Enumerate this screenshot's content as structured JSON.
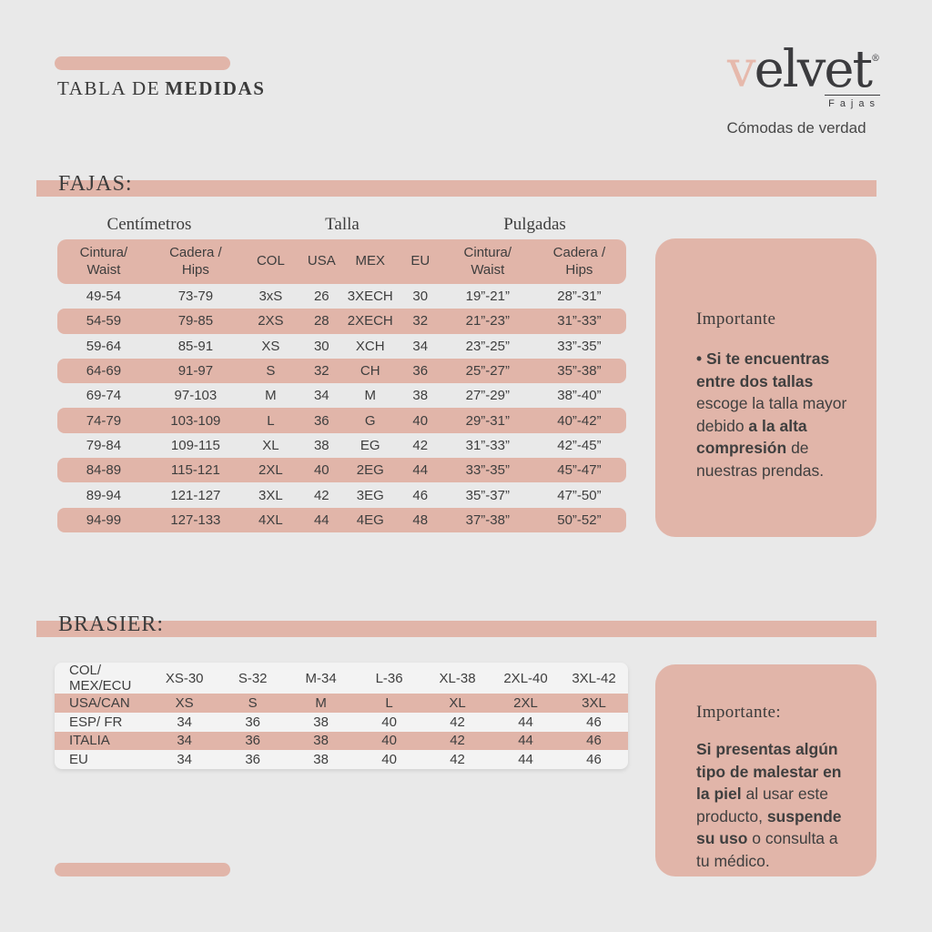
{
  "page": {
    "title_regular": "TABLA DE",
    "title_bold": "MEDIDAS"
  },
  "logo": {
    "wordmark_first": "v",
    "wordmark_rest": "elvet",
    "registered_mark": "®",
    "subtitle": "Fajas",
    "tagline": "Cómodas de verdad"
  },
  "fajas": {
    "section_label": "FAJAS:",
    "group_headers": {
      "cm": "Centímetros",
      "talla": "Talla",
      "pulgadas": "Pulgadas"
    },
    "columns": [
      "Cintura/\nWaist",
      "Cadera /\nHips",
      "COL",
      "USA",
      "MEX",
      "EU",
      "Cintura/\nWaist",
      "Cadera /\nHips"
    ],
    "rows": [
      [
        "49-54",
        "73-79",
        "3xS",
        "26",
        "3XECH",
        "30",
        "19”-21”",
        "28”-31”"
      ],
      [
        "54-59",
        "79-85",
        "2XS",
        "28",
        "2XECH",
        "32",
        "21”-23”",
        "31”-33”"
      ],
      [
        "59-64",
        "85-91",
        "XS",
        "30",
        "XCH",
        "34",
        "23”-25”",
        "33”-35”"
      ],
      [
        "64-69",
        "91-97",
        "S",
        "32",
        "CH",
        "36",
        "25”-27”",
        "35”-38”"
      ],
      [
        "69-74",
        "97-103",
        "M",
        "34",
        "M",
        "38",
        "27”-29”",
        "38”-40”"
      ],
      [
        "74-79",
        "103-109",
        "L",
        "36",
        "G",
        "40",
        "29”-31”",
        "40”-42”"
      ],
      [
        "79-84",
        "109-115",
        "XL",
        "38",
        "EG",
        "42",
        "31”-33”",
        "42”-45”"
      ],
      [
        "84-89",
        "115-121",
        "2XL",
        "40",
        "2EG",
        "44",
        "33”-35”",
        "45”-47”"
      ],
      [
        "89-94",
        "121-127",
        "3XL",
        "42",
        "3EG",
        "46",
        "35”-37”",
        "47”-50”"
      ],
      [
        "94-99",
        "127-133",
        "4XL",
        "44",
        "4EG",
        "48",
        "37”-38”",
        "50”-52”"
      ]
    ]
  },
  "importante_fajas": {
    "heading": "Importante",
    "segments": [
      {
        "text": "• Si te encuentras entre dos tallas ",
        "bold": true
      },
      {
        "text": "escoge la talla mayor debido ",
        "bold": false
      },
      {
        "text": "a la alta compresión ",
        "bold": true
      },
      {
        "text": "de nuestras prendas.",
        "bold": false
      }
    ]
  },
  "brasier": {
    "section_label": "BRASIER:",
    "rows": [
      [
        "COL/ MEX/ECU",
        "XS-30",
        "S-32",
        "M-34",
        "L-36",
        "XL-38",
        "2XL-40",
        "3XL-42"
      ],
      [
        "USA/CAN",
        "XS",
        "S",
        "M",
        "L",
        "XL",
        "2XL",
        "3XL"
      ],
      [
        "ESP/ FR",
        "34",
        "36",
        "38",
        "40",
        "42",
        "44",
        "46"
      ],
      [
        "ITALIA",
        "34",
        "36",
        "38",
        "40",
        "42",
        "44",
        "46"
      ],
      [
        "EU",
        "34",
        "36",
        "38",
        "40",
        "42",
        "44",
        "46"
      ]
    ]
  },
  "importante_brasier": {
    "heading": "Importante:",
    "segments": [
      {
        "text": "Si presentas algún tipo de malestar en la piel ",
        "bold": true
      },
      {
        "text": "al usar este producto, ",
        "bold": false
      },
      {
        "text": "suspende su uso ",
        "bold": true
      },
      {
        "text": "o consulta a tu médico.",
        "bold": false
      }
    ]
  },
  "colors": {
    "background": "#e9e9e9",
    "accent_pink": "#e1b5a9",
    "text_dark": "#3e3e3e"
  }
}
